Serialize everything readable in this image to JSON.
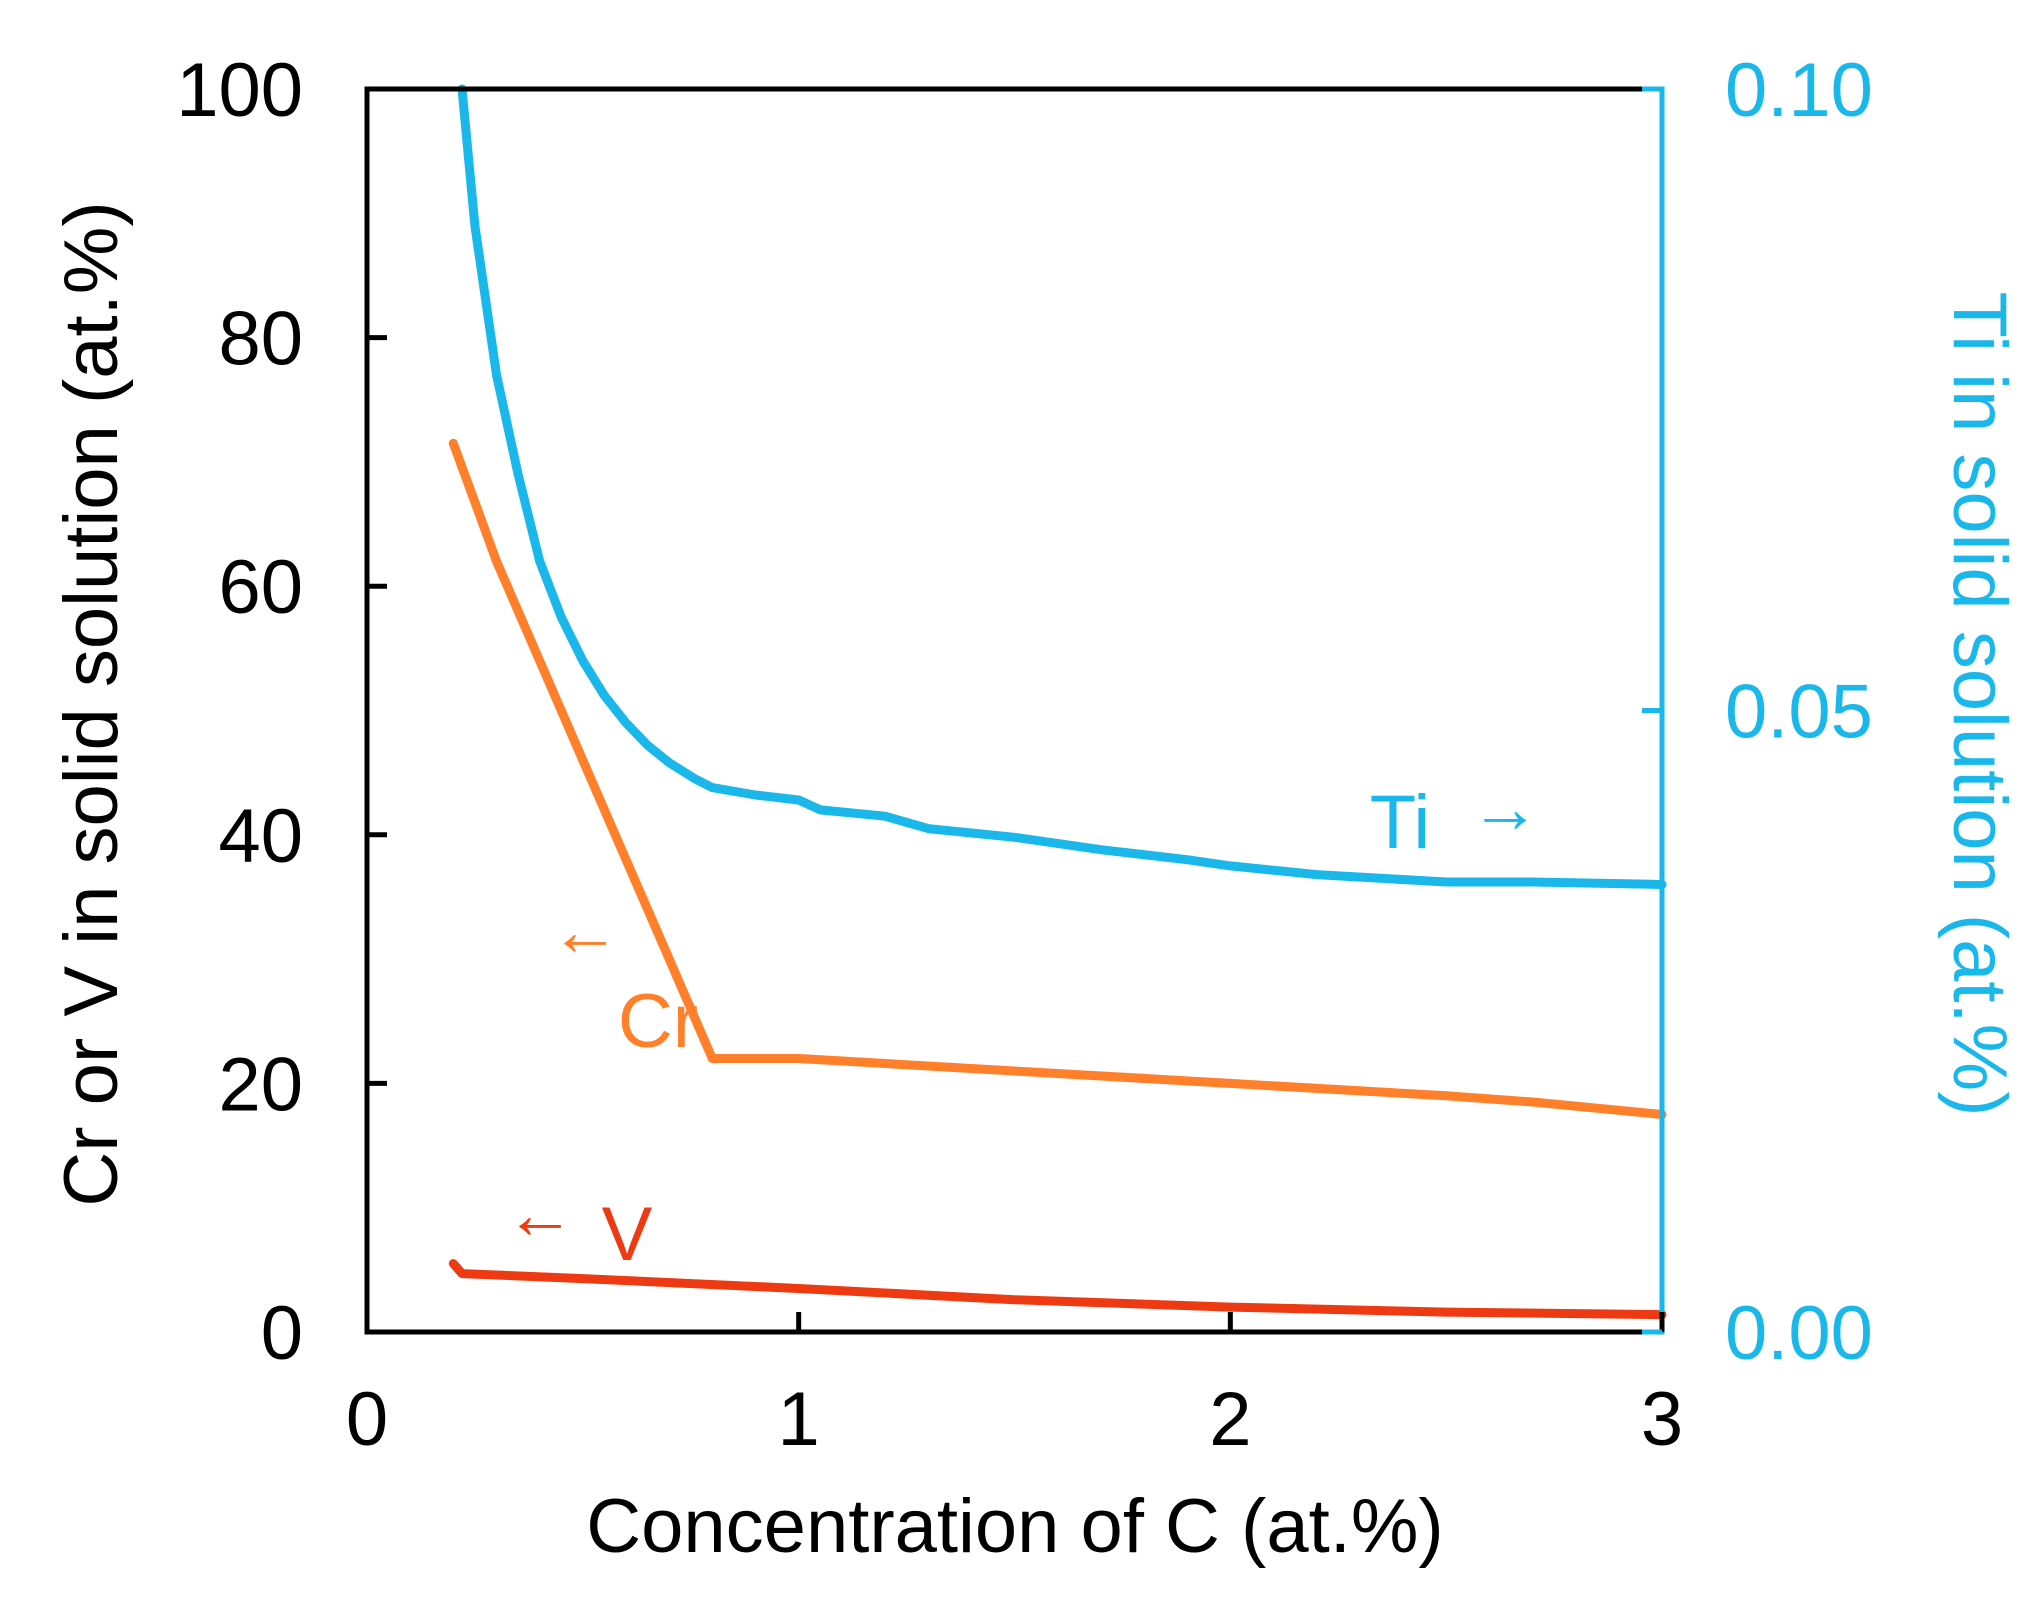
{
  "chart_data": {
    "type": "line",
    "title": "",
    "xlabel": "Concentration of C (at.%)",
    "ylabel_left": "Cr or V in solid solution (at.%)",
    "ylabel_right": "Ti in solid solution (at.%)",
    "xlim": [
      0,
      3
    ],
    "ylim_left": [
      0,
      100
    ],
    "ylim_right": [
      0,
      0.1
    ],
    "x_ticks": [
      "0",
      "1",
      "2",
      "3"
    ],
    "y_ticks_left": [
      "0",
      "20",
      "40",
      "60",
      "80",
      "100"
    ],
    "y_ticks_right": [
      "0.00",
      "0.05",
      "0.10"
    ],
    "grid": false,
    "colors": {
      "axis": "#000000",
      "Ti": "#1ab7ea",
      "Cr": "#ff7f2a",
      "V": "#ee3a12"
    },
    "series": [
      {
        "name": "Ti",
        "label": "Ti",
        "axis": "right",
        "arrow": "→",
        "x": [
          0.22,
          0.25,
          0.3,
          0.35,
          0.4,
          0.45,
          0.5,
          0.55,
          0.6,
          0.65,
          0.7,
          0.76,
          0.8,
          0.9,
          1.0,
          1.05,
          1.2,
          1.3,
          1.5,
          1.7,
          1.9,
          2.0,
          2.2,
          2.5,
          2.7,
          3.0
        ],
        "y": [
          0.1,
          0.089,
          0.077,
          0.069,
          0.062,
          0.0575,
          0.054,
          0.0512,
          0.049,
          0.0472,
          0.0458,
          0.0445,
          0.0438,
          0.0432,
          0.0428,
          0.042,
          0.0415,
          0.0405,
          0.0398,
          0.0388,
          0.038,
          0.0375,
          0.0368,
          0.0362,
          0.0362,
          0.036
        ]
      },
      {
        "name": "Cr",
        "label": "Cr",
        "axis": "left",
        "arrow": "←",
        "x": [
          0.2,
          0.3,
          0.5,
          0.7,
          0.8,
          0.9,
          1.0,
          1.5,
          2.0,
          2.5,
          2.7,
          3.0
        ],
        "y": [
          71.5,
          62,
          46,
          30,
          22,
          22,
          22,
          21,
          20,
          19,
          18.5,
          17.5
        ]
      },
      {
        "name": "V",
        "label": "V",
        "axis": "left",
        "arrow": "←",
        "x": [
          0.2,
          0.22,
          0.5,
          1.0,
          1.5,
          2.0,
          2.5,
          3.0
        ],
        "y": [
          5.5,
          4.7,
          4.3,
          3.5,
          2.6,
          2.0,
          1.6,
          1.4
        ]
      }
    ]
  }
}
